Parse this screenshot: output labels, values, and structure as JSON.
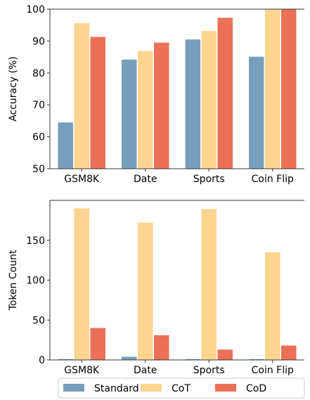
{
  "chart_data": [
    {
      "type": "bar",
      "categories": [
        "GSM8K",
        "Date",
        "Sports",
        "Coin Flip"
      ],
      "series": [
        {
          "name": "Standard",
          "values": [
            64.5,
            84.2,
            90.5,
            85.1
          ]
        },
        {
          "name": "CoT",
          "values": [
            95.6,
            86.9,
            93.2,
            100.0
          ]
        },
        {
          "name": "CoD",
          "values": [
            91.3,
            89.5,
            97.3,
            100.0
          ]
        }
      ],
      "ylabel": "Accuracy (%)",
      "ylim": [
        50,
        100
      ],
      "yticks": [
        "50",
        "60",
        "70",
        "80",
        "90",
        "100"
      ],
      "grid": false
    },
    {
      "type": "bar",
      "categories": [
        "GSM8K",
        "Date",
        "Sports",
        "Coin Flip"
      ],
      "series": [
        {
          "name": "Standard",
          "values": [
            1,
            4,
            1,
            1
          ]
        },
        {
          "name": "CoT",
          "values": [
            190,
            172,
            189,
            135
          ]
        },
        {
          "name": "CoD",
          "values": [
            40,
            31,
            13,
            18
          ]
        }
      ],
      "ylabel": "Token Count",
      "ylim": [
        0,
        200
      ],
      "yticks": [
        "0",
        "50",
        "100",
        "150"
      ],
      "grid": false
    }
  ],
  "legend": {
    "placement": "bottom",
    "items": [
      "Standard",
      "CoT",
      "CoD"
    ]
  },
  "colors": {
    "Standard": "#779fbd",
    "CoT": "#fdd58f",
    "CoD": "#ea7158"
  }
}
